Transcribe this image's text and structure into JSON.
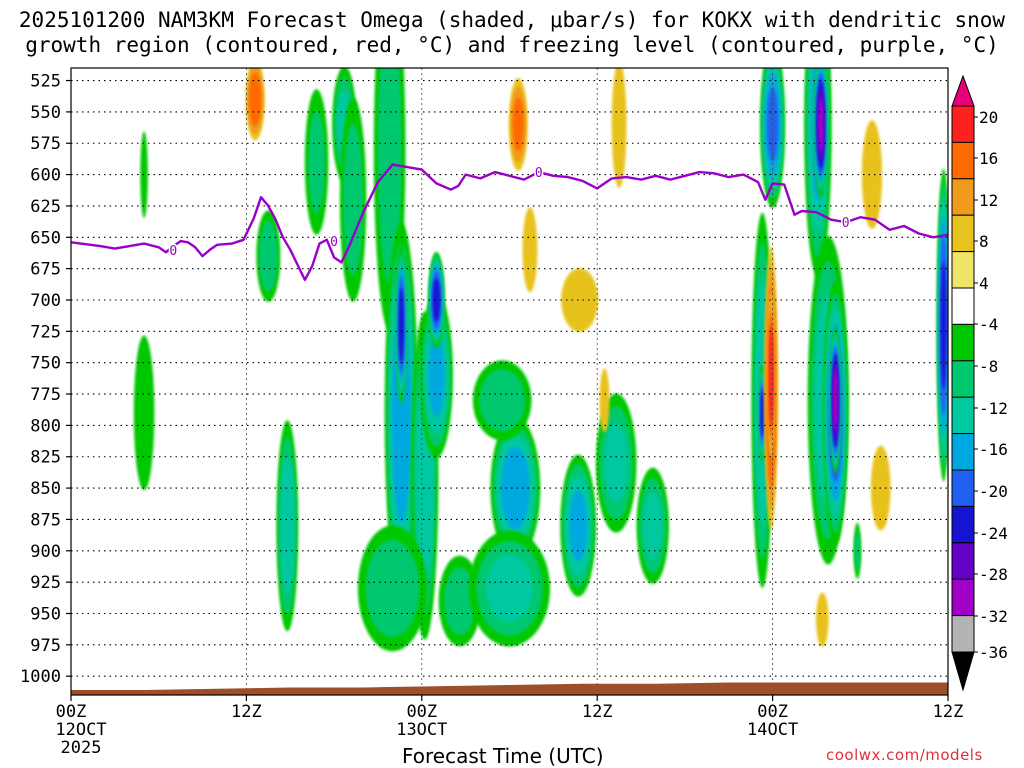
{
  "chart_data": {
    "type": "heatmap",
    "title_line1": "2025101200 NAM3KM Forecast Omega (shaded, μbar/s) for KOKX with dendritic snow",
    "title_line2": "growth region (contoured, red, °C) and freezing level (contoured, purple, °C)",
    "xlabel": "Forecast Time (UTC)",
    "ylabel": "",
    "credit": "coolwx.com/models",
    "x_range_hours": [
      0,
      60
    ],
    "x_ticks": [
      {
        "hour": 0,
        "label": "00Z",
        "sub1": "12OCT",
        "sub2": "2025"
      },
      {
        "hour": 12,
        "label": "12Z",
        "sub1": "",
        "sub2": ""
      },
      {
        "hour": 24,
        "label": "00Z",
        "sub1": "13OCT",
        "sub2": ""
      },
      {
        "hour": 36,
        "label": "12Z",
        "sub1": "",
        "sub2": ""
      },
      {
        "hour": 48,
        "label": "00Z",
        "sub1": "14OCT",
        "sub2": ""
      },
      {
        "hour": 60,
        "label": "12Z",
        "sub1": "",
        "sub2": ""
      }
    ],
    "y_ticks_hpa": [
      525,
      550,
      575,
      600,
      625,
      650,
      675,
      700,
      725,
      750,
      775,
      800,
      825,
      850,
      875,
      900,
      925,
      950,
      975,
      1000
    ],
    "y_range_hpa": [
      515,
      1015
    ],
    "colorbar": {
      "labels": [
        "20",
        "16",
        "12",
        "8",
        "4",
        "-4",
        "-8",
        "-12",
        "-16",
        "-20",
        "-24",
        "-28",
        "-32",
        "-36"
      ],
      "colors": [
        "#e8007a",
        "#ff2020",
        "#ff6a00",
        "#f09a1e",
        "#e8c21e",
        "#f0e36a",
        "#ffffff",
        "#00c800",
        "#00c86e",
        "#00c8a0",
        "#00a8e0",
        "#2060f0",
        "#1414d2",
        "#6400c8",
        "#a000c8",
        "#b4b4b4",
        "#000000"
      ]
    },
    "freezing_level": {
      "contour_label": "0",
      "color": "#9b00c8",
      "points": [
        [
          0,
          654
        ],
        [
          2,
          657
        ],
        [
          3,
          659
        ],
        [
          4,
          657
        ],
        [
          5,
          655
        ],
        [
          6,
          658
        ],
        [
          6.5,
          662
        ],
        [
          7,
          657
        ],
        [
          7.5,
          653
        ],
        [
          8,
          654
        ],
        [
          8.5,
          658
        ],
        [
          9,
          665
        ],
        [
          9.5,
          660
        ],
        [
          10,
          656
        ],
        [
          11,
          655
        ],
        [
          11.8,
          652
        ],
        [
          12.5,
          635
        ],
        [
          13,
          618
        ],
        [
          13.5,
          625
        ],
        [
          14,
          636
        ],
        [
          14.5,
          650
        ],
        [
          15,
          660
        ],
        [
          15.5,
          672
        ],
        [
          16,
          684
        ],
        [
          16.5,
          673
        ],
        [
          17,
          655
        ],
        [
          17.5,
          652
        ],
        [
          18,
          666
        ],
        [
          18.5,
          670
        ],
        [
          19,
          658
        ],
        [
          20,
          630
        ],
        [
          21,
          606
        ],
        [
          22,
          592
        ],
        [
          23,
          594
        ],
        [
          24,
          596
        ],
        [
          25,
          607
        ],
        [
          26,
          612
        ],
        [
          26.5,
          609
        ],
        [
          27,
          600
        ],
        [
          28,
          603
        ],
        [
          29,
          598
        ],
        [
          30,
          601
        ],
        [
          31,
          604
        ],
        [
          32,
          598
        ],
        [
          33,
          601
        ],
        [
          34,
          602
        ],
        [
          35,
          605
        ],
        [
          36,
          611
        ],
        [
          37,
          603
        ],
        [
          38,
          602
        ],
        [
          39,
          604
        ],
        [
          40,
          601
        ],
        [
          41,
          604
        ],
        [
          42,
          601
        ],
        [
          43,
          598
        ],
        [
          44,
          599
        ],
        [
          45,
          602
        ],
        [
          46,
          600
        ],
        [
          47,
          606
        ],
        [
          47.5,
          620
        ],
        [
          48,
          607
        ],
        [
          48.8,
          608
        ],
        [
          49.5,
          632
        ],
        [
          50,
          629
        ],
        [
          51,
          630
        ],
        [
          52,
          636
        ],
        [
          53,
          638
        ],
        [
          54,
          634
        ],
        [
          55,
          636
        ],
        [
          56,
          644
        ],
        [
          57,
          641
        ],
        [
          58,
          647
        ],
        [
          59,
          650
        ],
        [
          60,
          648
        ]
      ]
    },
    "terrain": {
      "color": "#9e4e28",
      "points": [
        [
          0,
          1011
        ],
        [
          5,
          1011
        ],
        [
          10,
          1010
        ],
        [
          15,
          1009
        ],
        [
          20,
          1009
        ],
        [
          25,
          1008
        ],
        [
          30,
          1007
        ],
        [
          35,
          1006
        ],
        [
          40,
          1006
        ],
        [
          45,
          1005
        ],
        [
          50,
          1005
        ],
        [
          55,
          1005
        ],
        [
          60,
          1005
        ]
      ]
    },
    "omega_blobs": [
      {
        "h": 5,
        "p": 790,
        "rx": 0.8,
        "ry": 70,
        "v": -7
      },
      {
        "h": 5,
        "p": 600,
        "rx": 0.3,
        "ry": 40,
        "v": -6
      },
      {
        "h": 12.6,
        "p": 540,
        "rx": 0.7,
        "ry": 35,
        "v": 14
      },
      {
        "h": 13.5,
        "p": 665,
        "rx": 0.9,
        "ry": 40,
        "v": -10
      },
      {
        "h": 14.8,
        "p": 880,
        "rx": 0.8,
        "ry": 90,
        "v": -14
      },
      {
        "h": 16.8,
        "p": 590,
        "rx": 0.9,
        "ry": 65,
        "v": -8
      },
      {
        "h": 18.7,
        "p": 560,
        "rx": 0.9,
        "ry": 50,
        "v": -12
      },
      {
        "h": 19.3,
        "p": 620,
        "rx": 1.0,
        "ry": 90,
        "v": -9
      },
      {
        "h": 21.8,
        "p": 580,
        "rx": 1.2,
        "ry": 160,
        "v": -9
      },
      {
        "h": 22.6,
        "p": 790,
        "rx": 1.2,
        "ry": 160,
        "v": -18
      },
      {
        "h": 22.6,
        "p": 720,
        "rx": 0.4,
        "ry": 65,
        "v": -26
      },
      {
        "h": 24.2,
        "p": 840,
        "rx": 1.0,
        "ry": 140,
        "v": -14
      },
      {
        "h": 25.0,
        "p": 760,
        "rx": 1.2,
        "ry": 70,
        "v": -16
      },
      {
        "h": 25.0,
        "p": 700,
        "rx": 0.6,
        "ry": 40,
        "v": -25
      },
      {
        "h": 22.0,
        "p": 930,
        "rx": 2.6,
        "ry": 55,
        "v": -10
      },
      {
        "h": 26.6,
        "p": 940,
        "rx": 1.6,
        "ry": 40,
        "v": -9
      },
      {
        "h": 30.4,
        "p": 850,
        "rx": 1.8,
        "ry": 60,
        "v": -18
      },
      {
        "h": 30.0,
        "p": 930,
        "rx": 3.0,
        "ry": 50,
        "v": -12
      },
      {
        "h": 29.5,
        "p": 780,
        "rx": 2.2,
        "ry": 35,
        "v": -10
      },
      {
        "h": 34.7,
        "p": 880,
        "rx": 1.3,
        "ry": 60,
        "v": -16
      },
      {
        "h": 37.3,
        "p": 830,
        "rx": 1.5,
        "ry": 60,
        "v": -12
      },
      {
        "h": 39.8,
        "p": 880,
        "rx": 1.2,
        "ry": 50,
        "v": -12
      },
      {
        "h": 30.6,
        "p": 560,
        "rx": 0.7,
        "ry": 40,
        "v": 12
      },
      {
        "h": 31.4,
        "p": 660,
        "rx": 0.6,
        "ry": 40,
        "v": 5
      },
      {
        "h": 34.8,
        "p": 700,
        "rx": 1.5,
        "ry": 30,
        "v": 5
      },
      {
        "h": 36.5,
        "p": 780,
        "rx": 0.4,
        "ry": 30,
        "v": 5
      },
      {
        "h": 37.5,
        "p": 560,
        "rx": 0.6,
        "ry": 60,
        "v": 5
      },
      {
        "h": 48.0,
        "p": 560,
        "rx": 0.9,
        "ry": 70,
        "v": -20
      },
      {
        "h": 47.3,
        "p": 780,
        "rx": 0.8,
        "ry": 160,
        "v": -14
      },
      {
        "h": 47.3,
        "p": 790,
        "rx": 0.3,
        "ry": 40,
        "v": -26
      },
      {
        "h": 47.9,
        "p": 770,
        "rx": 0.5,
        "ry": 120,
        "v": 16
      },
      {
        "h": 47.9,
        "p": 760,
        "rx": 0.3,
        "ry": 70,
        "v": 19
      },
      {
        "h": 51.1,
        "p": 560,
        "rx": 1.0,
        "ry": 130,
        "v": -16
      },
      {
        "h": 51.3,
        "p": 560,
        "rx": 0.5,
        "ry": 60,
        "v": -32
      },
      {
        "h": 51.8,
        "p": 780,
        "rx": 1.5,
        "ry": 140,
        "v": -14
      },
      {
        "h": 52.3,
        "p": 790,
        "rx": 0.9,
        "ry": 110,
        "v": -22
      },
      {
        "h": 52.3,
        "p": 780,
        "rx": 0.4,
        "ry": 60,
        "v": -34
      },
      {
        "h": 54.8,
        "p": 600,
        "rx": 0.8,
        "ry": 50,
        "v": 6
      },
      {
        "h": 55.4,
        "p": 850,
        "rx": 0.8,
        "ry": 40,
        "v": 5
      },
      {
        "h": 51.4,
        "p": 955,
        "rx": 0.5,
        "ry": 25,
        "v": 6
      },
      {
        "h": 53.8,
        "p": 900,
        "rx": 0.3,
        "ry": 25,
        "v": -8
      },
      {
        "h": 59.7,
        "p": 720,
        "rx": 0.5,
        "ry": 130,
        "v": -24
      }
    ]
  }
}
